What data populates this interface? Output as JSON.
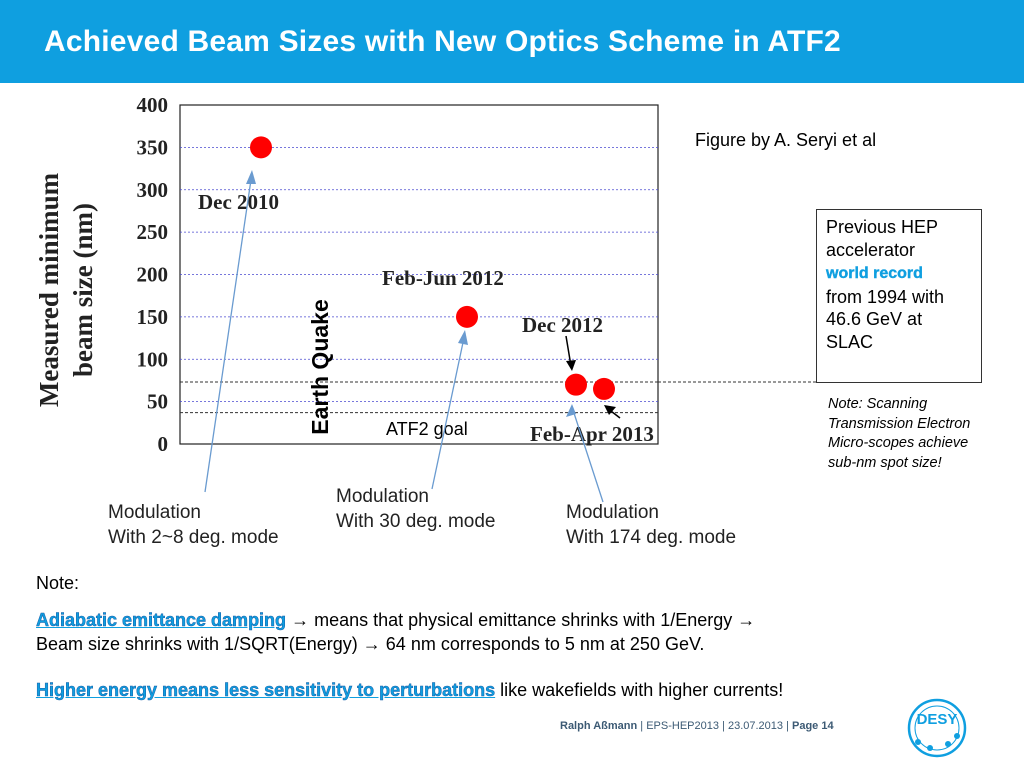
{
  "slide": {
    "title": "Achieved Beam Sizes with New Optics Scheme in ATF2",
    "figure_credit": "Figure by A. Seryi et al",
    "record_box": {
      "line1": "Previous HEP accelerator",
      "highlight": "world record",
      "line2": "from 1994 with 46.6 GeV at SLAC"
    },
    "scanning_note": "Note: Scanning Transmission Electron Micro-scopes achieve sub-nm spot size!",
    "note_label": "Note:",
    "para1": {
      "highlight": "Adiabatic emittance damping",
      "text1": "means that physical emittance shrinks with 1/Energy",
      "text2": "Beam size shrinks with 1/SQRT(Energy)",
      "text3": "64 nm corresponds to 5 nm at 250 GeV."
    },
    "para2": {
      "highlight": "Higher energy means less sensitivity to perturbations",
      "text": "like wakefields with higher currents!"
    },
    "modulations": [
      {
        "line1": "Modulation",
        "line2": "With 2~8 deg. mode"
      },
      {
        "line1": "Modulation",
        "line2": "With 30 deg. mode"
      },
      {
        "line1": "Modulation",
        "line2": "With 174 deg. mode"
      }
    ],
    "footer": {
      "author": "Ralph Aßmann",
      "event": "EPS-HEP2013",
      "date": "23.07.2013",
      "page": "Page 14"
    },
    "logo_text": "DESY",
    "colors": {
      "header": "#0f9fe0",
      "marker": "#ff0000",
      "highlight": "#0f9fe0"
    }
  },
  "chart_data": {
    "type": "scatter",
    "ylabel": "Measured minimum beam size (nm)",
    "ylim": [
      0,
      400
    ],
    "yticks": [
      0,
      50,
      100,
      150,
      200,
      250,
      300,
      350,
      400
    ],
    "series": [
      {
        "points": [
          {
            "label": "Dec 2010",
            "x": 1,
            "y": 350
          },
          {
            "label": "Feb-Jun 2012",
            "x": 2,
            "y": 150
          },
          {
            "label": "Dec 2012",
            "x": 3,
            "y": 70
          },
          {
            "label": "Feb-Apr 2013",
            "x": 4,
            "y": 65
          }
        ]
      }
    ],
    "annotations": {
      "event": "Earth Quake",
      "goal": "ATF2 goal",
      "goal_value": 37
    },
    "grid": true
  }
}
